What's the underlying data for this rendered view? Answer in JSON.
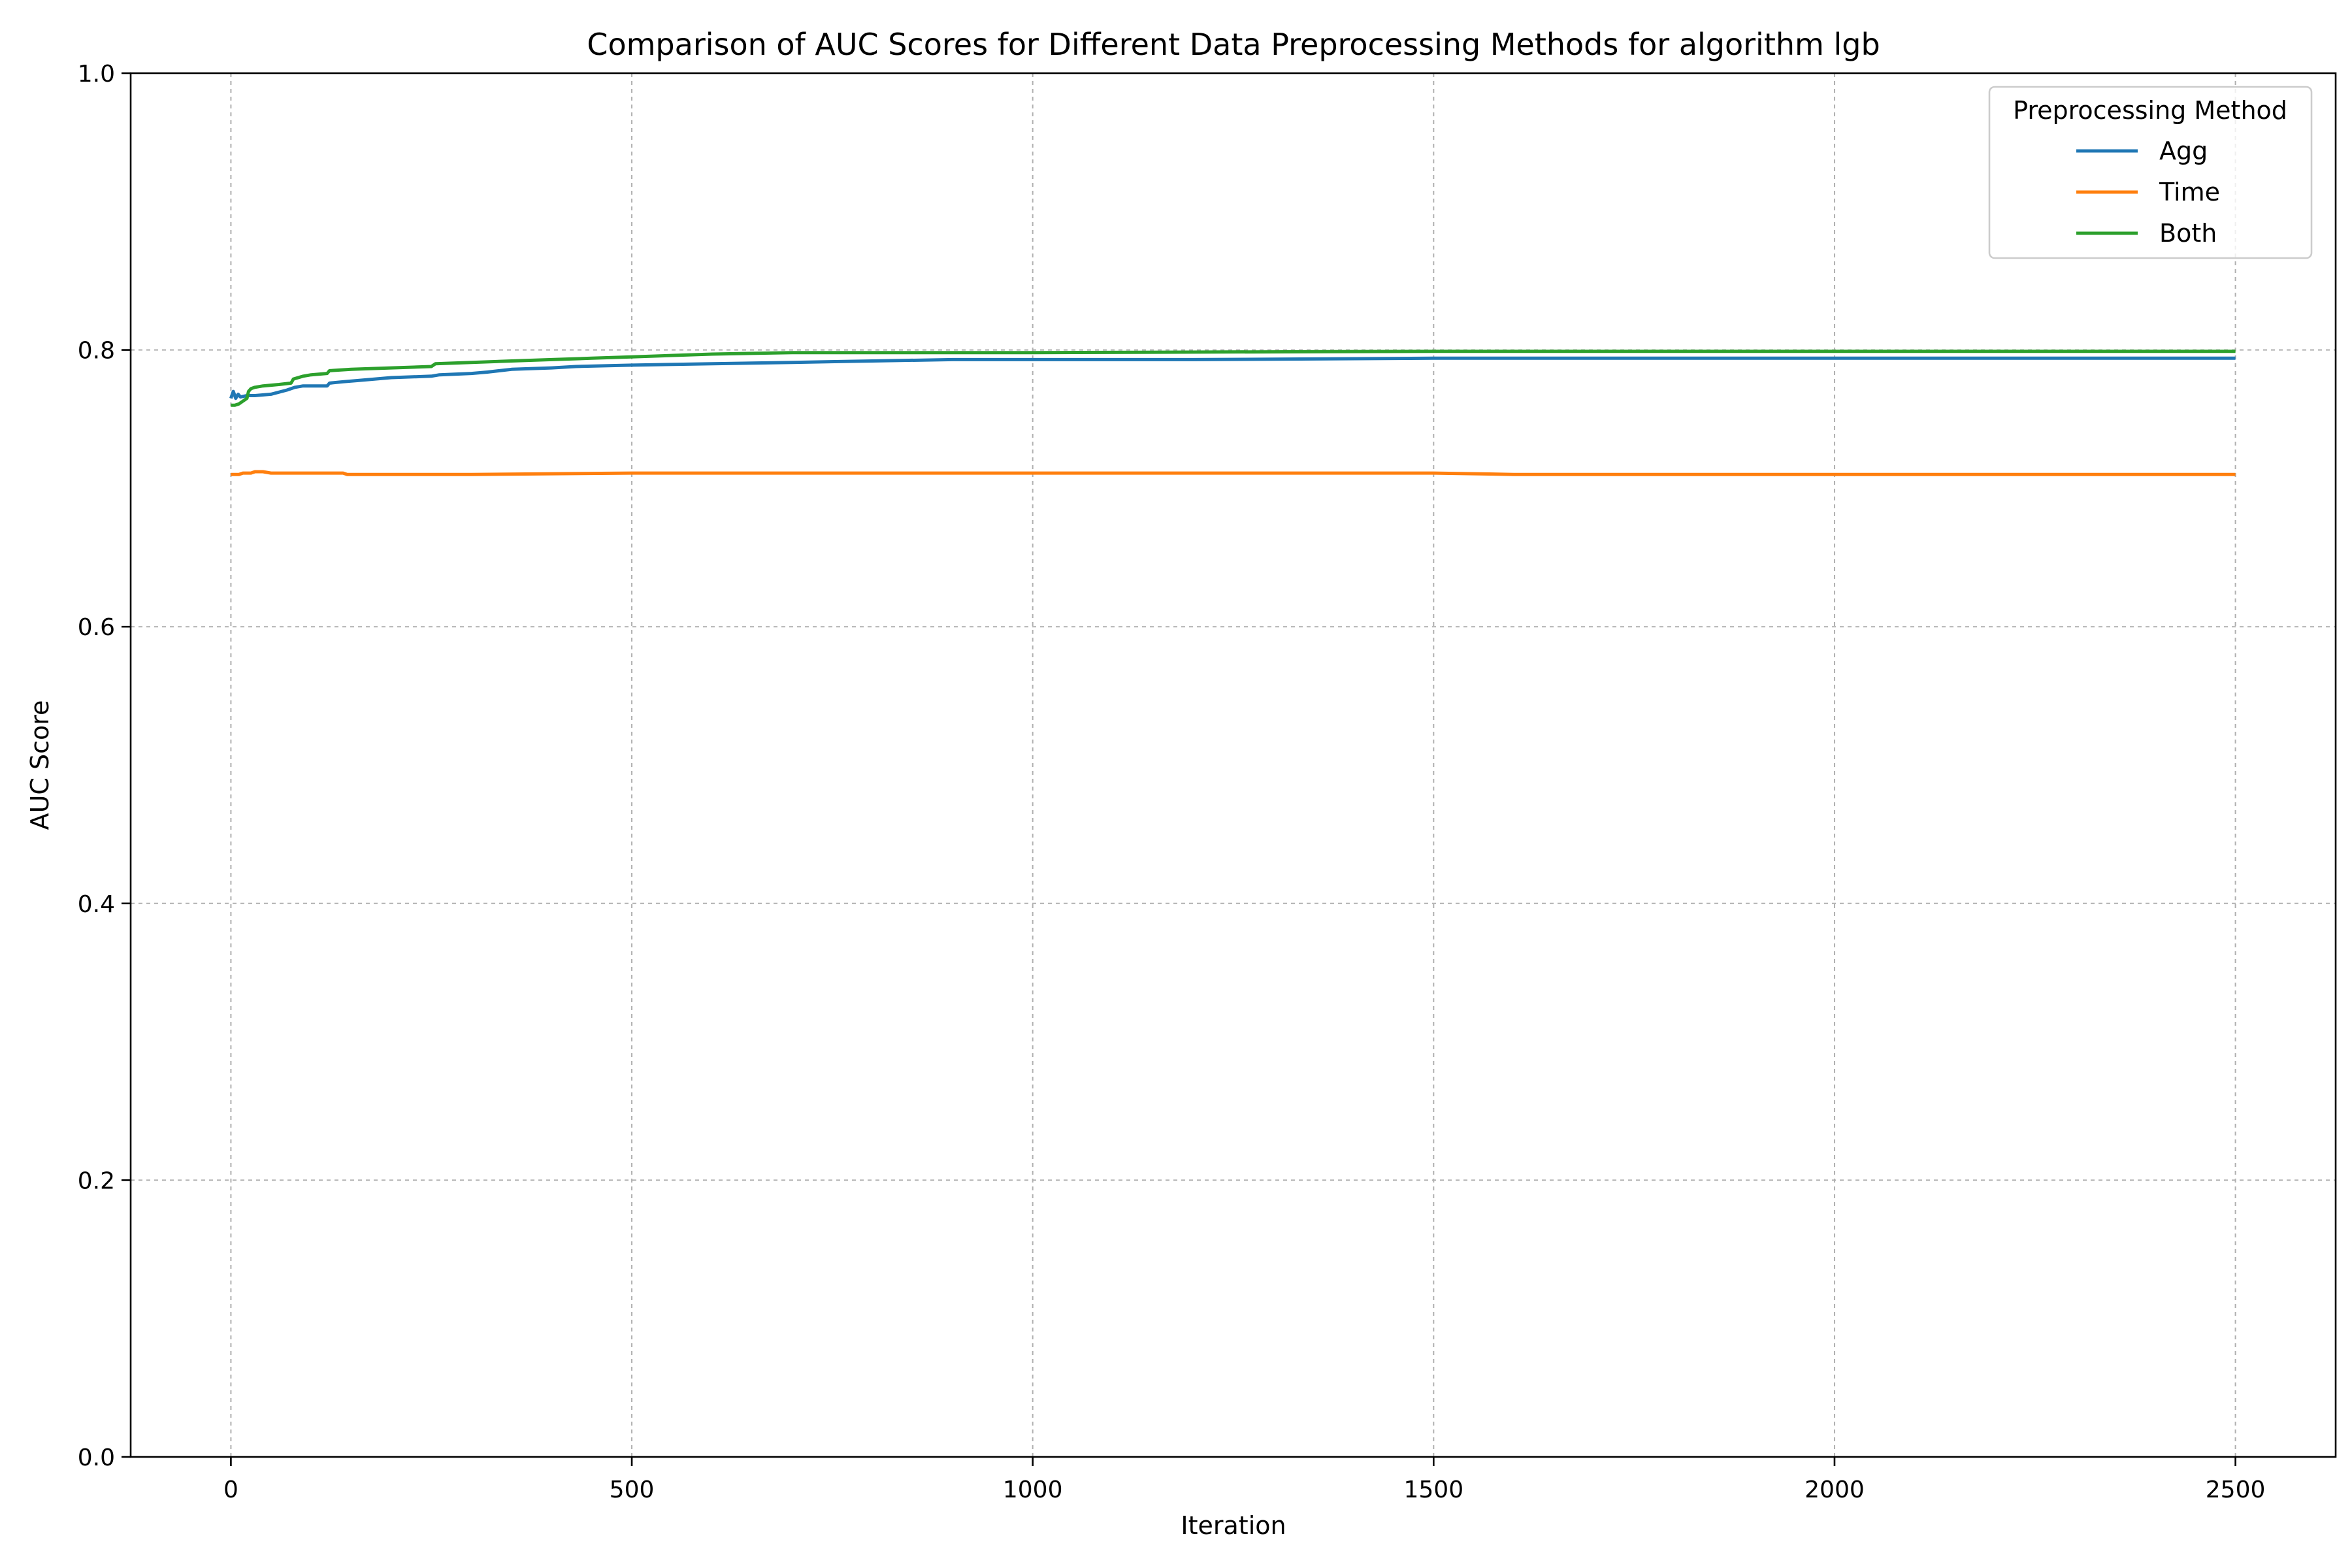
{
  "chart_data": {
    "type": "line",
    "title": "Comparison of AUC Scores for Different Data Preprocessing Methods for algorithm lgb",
    "xlabel": "Iteration",
    "ylabel": "AUC Score",
    "xlim": [
      -125,
      2625
    ],
    "ylim": [
      0.0,
      1.0
    ],
    "xticks": [
      0,
      500,
      1000,
      1500,
      2000,
      2500
    ],
    "xtick_labels": [
      "0",
      "500",
      "1000",
      "1500",
      "2000",
      "2500"
    ],
    "yticks": [
      0.0,
      0.2,
      0.4,
      0.6,
      0.8,
      1.0
    ],
    "ytick_labels": [
      "0.0",
      "0.2",
      "0.4",
      "0.6",
      "0.8",
      "1.0"
    ],
    "grid": true,
    "legend": {
      "title": "Preprocessing Method",
      "placement": "top-right"
    },
    "series": [
      {
        "name": "Agg",
        "color": "#1f77b4",
        "x": [
          0,
          3,
          6,
          9,
          12,
          20,
          30,
          50,
          70,
          80,
          90,
          100,
          110,
          120,
          123,
          140,
          160,
          200,
          250,
          260,
          300,
          320,
          350,
          400,
          430,
          500,
          600,
          700,
          800,
          900,
          1000,
          1200,
          1500,
          1800,
          2000,
          2200,
          2500
        ],
        "y": [
          0.765,
          0.77,
          0.765,
          0.768,
          0.766,
          0.767,
          0.767,
          0.768,
          0.771,
          0.773,
          0.774,
          0.774,
          0.774,
          0.774,
          0.776,
          0.777,
          0.778,
          0.78,
          0.781,
          0.782,
          0.783,
          0.784,
          0.786,
          0.787,
          0.788,
          0.789,
          0.79,
          0.791,
          0.792,
          0.793,
          0.793,
          0.793,
          0.794,
          0.794,
          0.794,
          0.794,
          0.794
        ]
      },
      {
        "name": "Time",
        "color": "#ff7f0e",
        "x": [
          0,
          10,
          15,
          20,
          25,
          30,
          40,
          50,
          80,
          140,
          145,
          200,
          300,
          500,
          700,
          1000,
          1300,
          1500,
          1600,
          1800,
          2000,
          2200,
          2350,
          2500
        ],
        "y": [
          0.71,
          0.71,
          0.711,
          0.711,
          0.711,
          0.712,
          0.712,
          0.711,
          0.711,
          0.711,
          0.71,
          0.71,
          0.71,
          0.711,
          0.711,
          0.711,
          0.711,
          0.711,
          0.71,
          0.71,
          0.71,
          0.71,
          0.71,
          0.71
        ]
      },
      {
        "name": "Both",
        "color": "#2ca02c",
        "x": [
          0,
          5,
          10,
          15,
          20,
          22,
          25,
          30,
          40,
          60,
          75,
          78,
          90,
          100,
          120,
          123,
          150,
          200,
          250,
          255,
          300,
          350,
          400,
          450,
          500,
          600,
          700,
          800,
          1000,
          1500,
          2000,
          2500
        ],
        "y": [
          0.76,
          0.76,
          0.761,
          0.763,
          0.765,
          0.77,
          0.772,
          0.773,
          0.774,
          0.775,
          0.776,
          0.779,
          0.781,
          0.782,
          0.783,
          0.785,
          0.786,
          0.787,
          0.788,
          0.79,
          0.791,
          0.792,
          0.793,
          0.794,
          0.795,
          0.797,
          0.798,
          0.798,
          0.798,
          0.799,
          0.799,
          0.799
        ]
      }
    ]
  }
}
